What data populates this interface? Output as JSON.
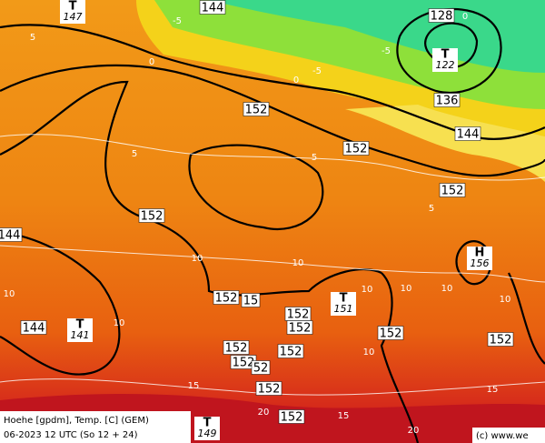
{
  "map": {
    "contour_labels": [
      "152",
      "152",
      "136",
      "128",
      "144",
      "144",
      "152",
      "152",
      "144",
      "144",
      "15",
      "152",
      "152",
      "152",
      "152",
      "152",
      "152",
      "52",
      "152",
      "152",
      "152",
      "152"
    ],
    "isotherm_labels": [
      "-5",
      "0",
      "-5",
      "0",
      "-5",
      "0",
      "5",
      "5",
      "5",
      "5",
      "10",
      "10",
      "10",
      "10",
      "10",
      "10",
      "10",
      "10",
      "10",
      "15",
      "15",
      "20",
      "20",
      "15"
    ],
    "centers": [
      {
        "symbol": "T",
        "value": "147"
      },
      {
        "symbol": "T",
        "value": "122"
      },
      {
        "symbol": "T",
        "value": "141"
      },
      {
        "symbol": "T",
        "value": "151"
      },
      {
        "symbol": "H",
        "value": "156"
      },
      {
        "symbol": "T",
        "value": "149"
      }
    ]
  },
  "footer": {
    "legend_line1": "Hoehe [gpdm], Temp. [C] (GEM)",
    "legend_line2": "06-2023 12 UTC (So 12 + 24)",
    "copyright": "(c) www.we"
  }
}
